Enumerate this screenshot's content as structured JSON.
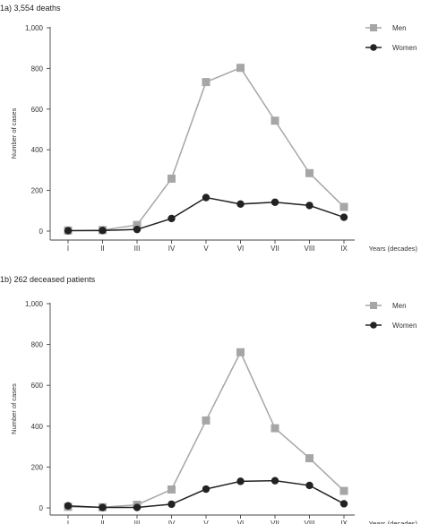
{
  "chart_data": [
    {
      "type": "line",
      "panel_title": "1a) 3,554 deaths",
      "categories": [
        "I",
        "II",
        "III",
        "IV",
        "V",
        "VI",
        "VII",
        "VIII",
        "IX"
      ],
      "series": [
        {
          "name": "Men",
          "color": "#a6a6a6",
          "marker": "square",
          "values": [
            3,
            5,
            30,
            258,
            733,
            803,
            543,
            285,
            119
          ]
        },
        {
          "name": "Women",
          "color": "#222222",
          "marker": "circle",
          "values": [
            2,
            3,
            8,
            62,
            165,
            133,
            142,
            126,
            68
          ]
        }
      ],
      "ylabel": "Number of cases",
      "xlabel": "Years (decades)",
      "y_ticks": [
        "0",
        "200",
        "400",
        "600",
        "800",
        "1,000"
      ],
      "ylim": [
        0,
        1000
      ],
      "legend_position": "top-right",
      "grid": false
    },
    {
      "type": "line",
      "panel_title": "1b) 262 deceased patients",
      "categories": [
        "I",
        "II",
        "III",
        "IV",
        "V",
        "VI",
        "VII",
        "VIII",
        "IX"
      ],
      "series": [
        {
          "name": "Men",
          "color": "#a6a6a6",
          "marker": "square",
          "values": [
            5,
            3,
            15,
            90,
            428,
            762,
            390,
            243,
            83
          ]
        },
        {
          "name": "Women",
          "color": "#222222",
          "marker": "circle",
          "values": [
            10,
            2,
            2,
            18,
            92,
            130,
            133,
            110,
            20
          ]
        }
      ],
      "ylabel": "Number of cases",
      "xlabel": "Years (decades)",
      "y_ticks": [
        "0",
        "200",
        "400",
        "600",
        "800",
        "1,000"
      ],
      "ylim": [
        0,
        1000
      ],
      "legend_position": "top-right",
      "grid": false
    }
  ]
}
